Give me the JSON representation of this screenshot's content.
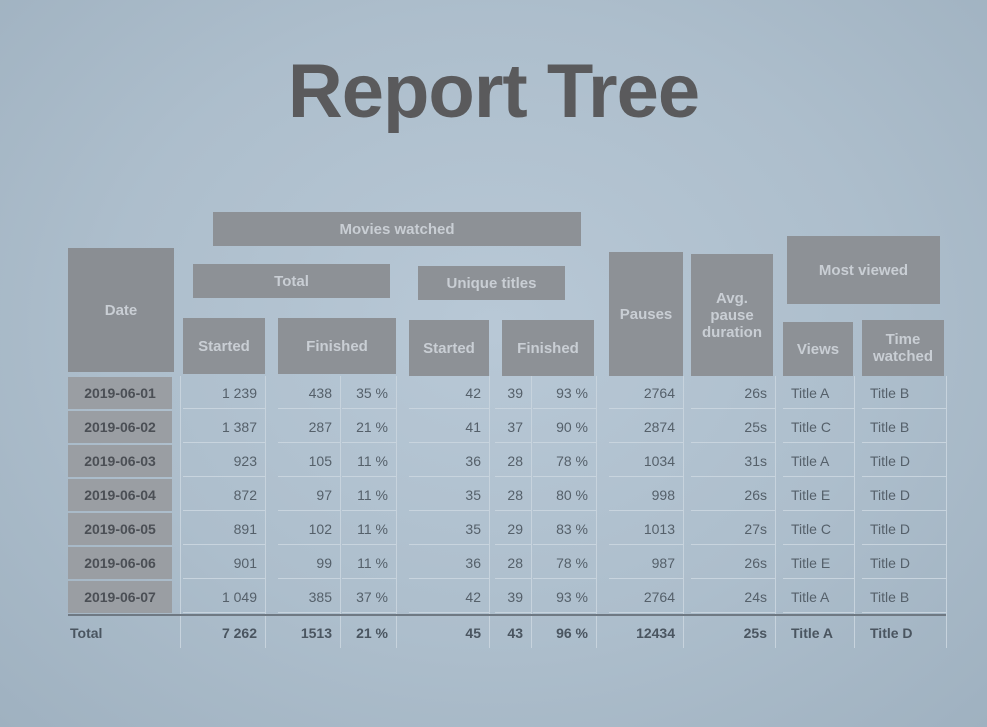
{
  "title": "Report Tree",
  "headers": {
    "movies_watched": "Movies watched",
    "total": "Total",
    "unique_titles": "Unique titles",
    "date": "Date",
    "pauses": "Pauses",
    "avg_pause": "Avg. pause duration",
    "most_viewed": "Most viewed",
    "started": "Started",
    "finished": "Finished",
    "started2": "Started",
    "finished2": "Finished",
    "views": "Views",
    "time_watched": "Time watched"
  },
  "rows": [
    {
      "date": "2019-06-01",
      "started": "1 239",
      "fin": "438",
      "fin_pct": "35 %",
      "u_started": "42",
      "u_fin": "39",
      "u_pct": "93 %",
      "pauses": "2764",
      "avg": "26s",
      "views": "Title A",
      "time": "Title B"
    },
    {
      "date": "2019-06-02",
      "started": "1 387",
      "fin": "287",
      "fin_pct": "21 %",
      "u_started": "41",
      "u_fin": "37",
      "u_pct": "90 %",
      "pauses": "2874",
      "avg": "25s",
      "views": "Title C",
      "time": "Title B"
    },
    {
      "date": "2019-06-03",
      "started": "923",
      "fin": "105",
      "fin_pct": "11 %",
      "u_started": "36",
      "u_fin": "28",
      "u_pct": "78 %",
      "pauses": "1034",
      "avg": "31s",
      "views": "Title A",
      "time": "Title D"
    },
    {
      "date": "2019-06-04",
      "started": "872",
      "fin": "97",
      "fin_pct": "11 %",
      "u_started": "35",
      "u_fin": "28",
      "u_pct": "80 %",
      "pauses": "998",
      "avg": "26s",
      "views": "Title E",
      "time": "Title D"
    },
    {
      "date": "2019-06-05",
      "started": "891",
      "fin": "102",
      "fin_pct": "11 %",
      "u_started": "35",
      "u_fin": "29",
      "u_pct": "83 %",
      "pauses": "1013",
      "avg": "27s",
      "views": "Title C",
      "time": "Title D"
    },
    {
      "date": "2019-06-06",
      "started": "901",
      "fin": "99",
      "fin_pct": "11 %",
      "u_started": "36",
      "u_fin": "28",
      "u_pct": "78 %",
      "pauses": "987",
      "avg": "26s",
      "views": "Title E",
      "time": "Title D"
    },
    {
      "date": "2019-06-07",
      "started": "1 049",
      "fin": "385",
      "fin_pct": "37 %",
      "u_started": "42",
      "u_fin": "39",
      "u_pct": "93 %",
      "pauses": "2764",
      "avg": "24s",
      "views": "Title A",
      "time": "Title B"
    }
  ],
  "total": {
    "label": "Total",
    "started": "7 262",
    "fin": "1513",
    "fin_pct": "21 %",
    "u_started": "45",
    "u_fin": "43",
    "u_pct": "96 %",
    "pauses": "12434",
    "avg": "25s",
    "views": "Title A",
    "time": "Title D"
  }
}
